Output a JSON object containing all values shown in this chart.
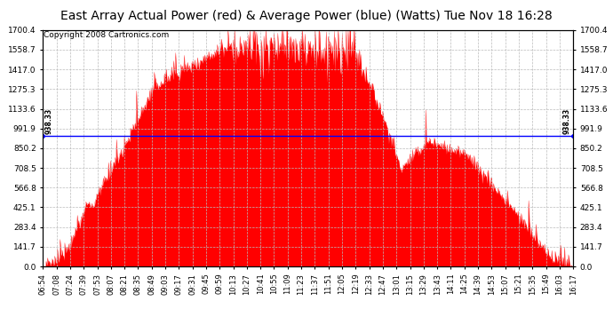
{
  "title": "East Array Actual Power (red) & Average Power (blue) (Watts) Tue Nov 18 16:28",
  "copyright": "Copyright 2008 Cartronics.com",
  "average_power": 938.33,
  "y_max": 1700.4,
  "y_min": 0.0,
  "y_ticks": [
    0.0,
    141.7,
    283.4,
    425.1,
    566.8,
    708.5,
    850.2,
    991.9,
    1133.6,
    1275.3,
    1417.0,
    1558.7,
    1700.4
  ],
  "x_labels": [
    "06:54",
    "07:08",
    "07:24",
    "07:39",
    "07:53",
    "08:07",
    "08:21",
    "08:35",
    "08:49",
    "09:03",
    "09:17",
    "09:31",
    "09:45",
    "09:59",
    "10:13",
    "10:27",
    "10:41",
    "10:55",
    "11:09",
    "11:23",
    "11:37",
    "11:51",
    "12:05",
    "12:19",
    "12:33",
    "12:47",
    "13:01",
    "13:15",
    "13:29",
    "13:43",
    "14:11",
    "14:25",
    "14:39",
    "14:53",
    "15:07",
    "15:21",
    "15:35",
    "15:49",
    "16:03",
    "16:17"
  ],
  "fill_color": "#FF0000",
  "line_color": "#0000FF",
  "background_color": "#FFFFFF",
  "grid_color": "#BBBBBB",
  "title_fontsize": 10,
  "copyright_fontsize": 6.5,
  "tick_fontsize": 6.5,
  "label_fontsize": 6
}
